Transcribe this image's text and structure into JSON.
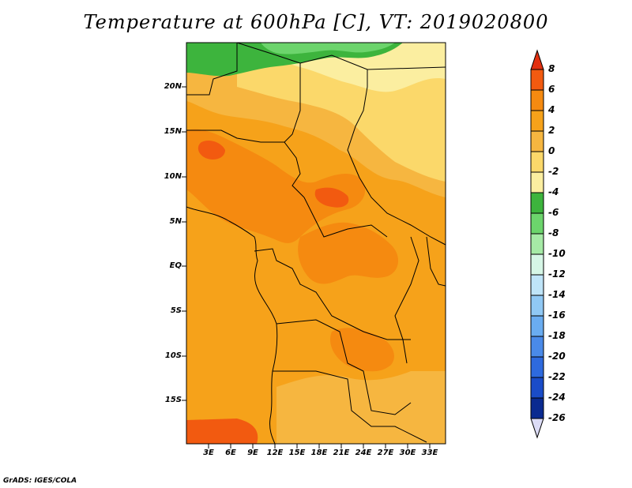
{
  "title": "Temperature at 600hPa [C], VT: 2019020800",
  "credit": "GrADS: IGES/COLA",
  "map": {
    "lat_labels": [
      "20N",
      "15N",
      "10N",
      "5N",
      "EQ",
      "5S",
      "10S",
      "15S"
    ],
    "lon_labels": [
      "3E",
      "6E",
      "9E",
      "12E",
      "15E",
      "18E",
      "21E",
      "24E",
      "27E",
      "30E",
      "33E"
    ]
  },
  "colorbar": {
    "labels": [
      "8",
      "6",
      "4",
      "2",
      "0",
      "-2",
      "-4",
      "-6",
      "-8",
      "-10",
      "-12",
      "-14",
      "-16",
      "-18",
      "-20",
      "-22",
      "-24",
      "-26"
    ],
    "colors": [
      "#e23010",
      "#f25a10",
      "#f58a10",
      "#f6a21a",
      "#f6b640",
      "#fbd86a",
      "#fbeea0",
      "#3db43d",
      "#6cd46c",
      "#a6eaa6",
      "#d6f6e6",
      "#bfe4f8",
      "#90c8f4",
      "#6aacf0",
      "#4a8ae8",
      "#2e6ade",
      "#1a4cc8",
      "#0a2a90",
      "#0a1464",
      "#dcdcf6"
    ]
  }
}
